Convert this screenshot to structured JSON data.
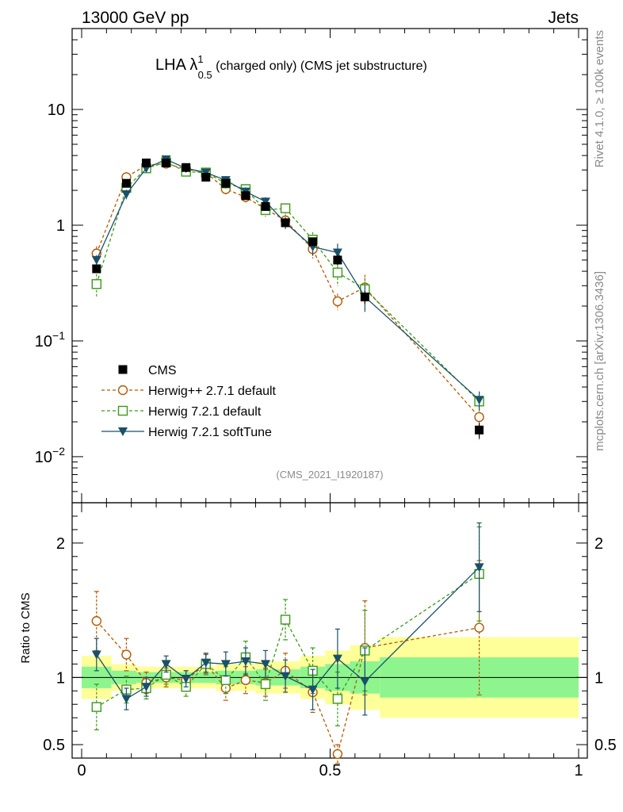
{
  "header": {
    "energy": "13000 GeV pp",
    "category": "Jets"
  },
  "side": {
    "rivet": "Rivet 4.1.0, ≥ 100k events",
    "mcplots": "mcplots.cern.ch [arXiv:1306.3436]"
  },
  "title": {
    "main": "LHA λ",
    "sup": "1",
    "sub": "0.5",
    "rest": " (charged only) (CMS jet substructure)"
  },
  "watermark": "(CMS_2021_I1920187)",
  "ratio_ylabel": "Ratio to CMS",
  "colors": {
    "cms": "#000000",
    "herwigpp": "#b35900",
    "herwig721": "#3a9a1a",
    "softtune": "#1a5068",
    "band_inner": "#8ef58e",
    "band_outer": "#ffff99"
  },
  "chart_data": {
    "type": "scatter",
    "xlim": [
      0,
      1
    ],
    "main_ylim": [
      0.004,
      50
    ],
    "main_yscale": "log",
    "ratio_ylim": [
      0.4,
      2.3
    ],
    "x_ticks": [
      {
        "v": 0,
        "label": "0"
      },
      {
        "v": 0.5,
        "label": "0.5"
      },
      {
        "v": 1,
        "label": "1"
      }
    ],
    "main_y_ticks": [
      {
        "v": 0.01,
        "base": "10",
        "exp": "−2"
      },
      {
        "v": 0.1,
        "base": "10",
        "exp": "−1"
      },
      {
        "v": 1,
        "base": "1",
        "exp": ""
      },
      {
        "v": 10,
        "base": "10",
        "exp": ""
      }
    ],
    "ratio_y_ticks": [
      {
        "v": 0.5,
        "label": "0.5"
      },
      {
        "v": 1,
        "label": "1"
      },
      {
        "v": 2,
        "label": "2"
      }
    ],
    "x": [
      0.03,
      0.09,
      0.13,
      0.17,
      0.21,
      0.25,
      0.29,
      0.33,
      0.37,
      0.41,
      0.465,
      0.515,
      0.57,
      0.8
    ],
    "bin_edges": [
      0.0,
      0.06,
      0.11,
      0.15,
      0.19,
      0.23,
      0.27,
      0.31,
      0.35,
      0.39,
      0.44,
      0.49,
      0.54,
      0.6,
      1.0
    ],
    "series": [
      {
        "name": "CMS",
        "key": "cms",
        "marker": "square-filled",
        "line": "none",
        "values": [
          0.42,
          2.3,
          3.45,
          3.45,
          3.15,
          2.6,
          2.3,
          1.8,
          1.45,
          1.05,
          0.72,
          0.5,
          0.24,
          0.017
        ],
        "rel_err": [
          0.08,
          0.05,
          0.04,
          0.04,
          0.04,
          0.04,
          0.05,
          0.05,
          0.06,
          0.06,
          0.08,
          0.1,
          0.12,
          0.15
        ]
      },
      {
        "name": "Herwig++ 2.7.1 default",
        "key": "herwigpp",
        "marker": "circle-open",
        "line": "dashed",
        "values": [
          0.57,
          2.6,
          3.3,
          3.4,
          3.05,
          2.85,
          2.05,
          1.75,
          1.38,
          1.1,
          0.62,
          0.22,
          0.29,
          0.022
        ],
        "ratio": [
          1.42,
          1.17,
          0.96,
          1.0,
          0.98,
          1.1,
          0.92,
          0.98,
          0.96,
          1.05,
          0.89,
          0.43,
          1.22,
          1.37
        ],
        "ratio_err": [
          0.22,
          0.12,
          0.08,
          0.07,
          0.07,
          0.07,
          0.09,
          0.1,
          0.1,
          0.13,
          0.15,
          0.07,
          0.35,
          0.5
        ]
      },
      {
        "name": "Herwig 7.2.1 default",
        "key": "herwig721",
        "marker": "square-open",
        "line": "dashed",
        "values": [
          0.31,
          2.1,
          3.1,
          3.5,
          2.9,
          2.85,
          2.3,
          2.05,
          1.35,
          1.4,
          0.75,
          0.39,
          0.28,
          0.03
        ],
        "ratio": [
          0.78,
          0.91,
          0.92,
          1.02,
          0.93,
          1.1,
          0.98,
          1.15,
          0.95,
          1.43,
          1.05,
          0.84,
          1.2,
          1.77
        ],
        "ratio_err": [
          0.17,
          0.1,
          0.08,
          0.07,
          0.07,
          0.08,
          0.1,
          0.12,
          0.12,
          0.15,
          0.17,
          0.2,
          0.3,
          0.35
        ]
      },
      {
        "name": "Herwig 7.2.1 softTune",
        "key": "softtune",
        "marker": "triangle-down-filled",
        "line": "solid",
        "values": [
          0.5,
          1.85,
          3.1,
          3.7,
          3.1,
          2.85,
          2.45,
          1.95,
          1.6,
          1.05,
          0.65,
          0.58,
          0.24,
          0.031
        ],
        "ratio": [
          1.17,
          0.84,
          0.93,
          1.1,
          0.99,
          1.11,
          1.1,
          1.12,
          1.1,
          1.01,
          0.91,
          1.14,
          0.97,
          1.82
        ],
        "ratio_err": [
          0.12,
          0.08,
          0.07,
          0.06,
          0.06,
          0.07,
          0.09,
          0.1,
          0.1,
          0.12,
          0.15,
          0.22,
          0.25,
          0.33
        ]
      }
    ],
    "legend": {
      "position": "middle-left",
      "entries": [
        "CMS",
        "Herwig++ 2.7.1 default",
        "Herwig 7.2.1 default",
        "Herwig 7.2.1 softTune"
      ]
    }
  }
}
